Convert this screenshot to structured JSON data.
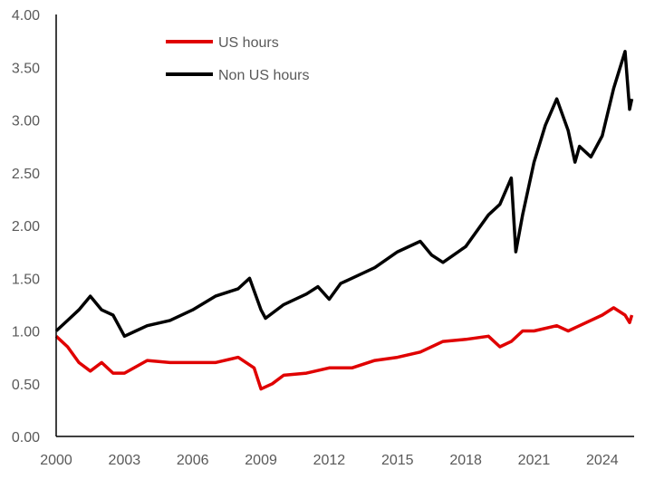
{
  "chart_data": {
    "type": "line",
    "title": "",
    "xlabel": "",
    "ylabel": "",
    "xlim": [
      2000,
      2025.4
    ],
    "ylim": [
      0,
      4
    ],
    "x_ticks": [
      "2000",
      "2003",
      "2006",
      "2009",
      "2012",
      "2015",
      "2018",
      "2021",
      "2024"
    ],
    "y_ticks": [
      "0.00",
      "0.50",
      "1.00",
      "1.50",
      "2.00",
      "2.50",
      "3.00",
      "3.50",
      "4.00"
    ],
    "grid": false,
    "legend_placement": "top-left",
    "series": [
      {
        "name": "US hours",
        "color": "#e00000",
        "x": [
          2000,
          2000.5,
          2001,
          2001.5,
          2002,
          2002.5,
          2003,
          2004,
          2005,
          2006,
          2007,
          2008,
          2008.7,
          2009,
          2009.5,
          2010,
          2011,
          2012,
          2013,
          2014,
          2015,
          2016,
          2017,
          2018,
          2019,
          2019.5,
          2020,
          2020.5,
          2021,
          2022,
          2022.5,
          2023,
          2024,
          2024.5,
          2025,
          2025.2,
          2025.3
        ],
        "y": [
          0.95,
          0.85,
          0.7,
          0.62,
          0.7,
          0.6,
          0.6,
          0.72,
          0.7,
          0.7,
          0.7,
          0.75,
          0.65,
          0.45,
          0.5,
          0.58,
          0.6,
          0.65,
          0.65,
          0.72,
          0.75,
          0.8,
          0.9,
          0.92,
          0.95,
          0.85,
          0.9,
          1.0,
          1.0,
          1.05,
          1.0,
          1.05,
          1.15,
          1.22,
          1.15,
          1.08,
          1.15
        ]
      },
      {
        "name": "Non US hours",
        "color": "#000000",
        "x": [
          2000,
          2000.5,
          2001,
          2001.5,
          2002,
          2002.5,
          2003,
          2003.5,
          2004,
          2005,
          2006,
          2007,
          2008,
          2008.5,
          2009,
          2009.2,
          2010,
          2011,
          2011.5,
          2012,
          2012.5,
          2013,
          2014,
          2015,
          2016,
          2016.5,
          2017,
          2018,
          2019,
          2019.5,
          2020,
          2020.2,
          2020.5,
          2021,
          2021.5,
          2022,
          2022.5,
          2022.8,
          2023,
          2023.5,
          2024,
          2024.5,
          2025,
          2025.2,
          2025.3
        ],
        "y": [
          1.0,
          1.1,
          1.2,
          1.33,
          1.2,
          1.15,
          0.95,
          1.0,
          1.05,
          1.1,
          1.2,
          1.33,
          1.4,
          1.5,
          1.2,
          1.12,
          1.25,
          1.35,
          1.42,
          1.3,
          1.45,
          1.5,
          1.6,
          1.75,
          1.85,
          1.72,
          1.65,
          1.8,
          2.1,
          2.2,
          2.45,
          1.75,
          2.1,
          2.6,
          2.95,
          3.2,
          2.9,
          2.6,
          2.75,
          2.65,
          2.85,
          3.3,
          3.65,
          3.1,
          3.2
        ]
      }
    ]
  }
}
